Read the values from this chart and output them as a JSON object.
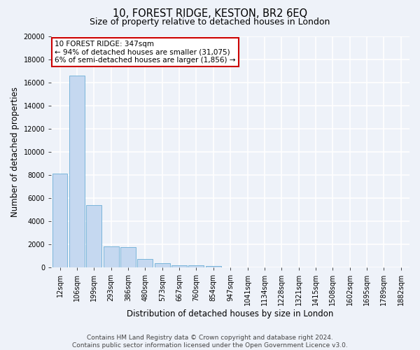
{
  "title": "10, FOREST RIDGE, KESTON, BR2 6EQ",
  "subtitle": "Size of property relative to detached houses in London",
  "xlabel": "Distribution of detached houses by size in London",
  "ylabel": "Number of detached properties",
  "footer_line1": "Contains HM Land Registry data © Crown copyright and database right 2024.",
  "footer_line2": "Contains public sector information licensed under the Open Government Licence v3.0.",
  "categories": [
    "12sqm",
    "106sqm",
    "199sqm",
    "293sqm",
    "386sqm",
    "480sqm",
    "573sqm",
    "667sqm",
    "760sqm",
    "854sqm",
    "947sqm",
    "1041sqm",
    "1134sqm",
    "1228sqm",
    "1321sqm",
    "1415sqm",
    "1508sqm",
    "1602sqm",
    "1695sqm",
    "1789sqm",
    "1882sqm"
  ],
  "values": [
    8100,
    16600,
    5400,
    1800,
    1750,
    750,
    350,
    200,
    150,
    100,
    0,
    0,
    0,
    0,
    0,
    0,
    0,
    0,
    0,
    0,
    0
  ],
  "bar_color": "#c5d8f0",
  "bar_edge_color": "#6baed6",
  "annotation_text": "10 FOREST RIDGE: 347sqm\n← 94% of detached houses are smaller (31,075)\n6% of semi-detached houses are larger (1,856) →",
  "annotation_box_color": "#ffffff",
  "annotation_box_edge_color": "#cc0000",
  "ylim": [
    0,
    20000
  ],
  "yticks": [
    0,
    2000,
    4000,
    6000,
    8000,
    10000,
    12000,
    14000,
    16000,
    18000,
    20000
  ],
  "bg_color": "#eef2f9",
  "grid_color": "#ffffff",
  "title_fontsize": 10.5,
  "subtitle_fontsize": 9,
  "axis_label_fontsize": 8.5,
  "tick_fontsize": 7,
  "annotation_fontsize": 7.5,
  "footer_fontsize": 6.5
}
